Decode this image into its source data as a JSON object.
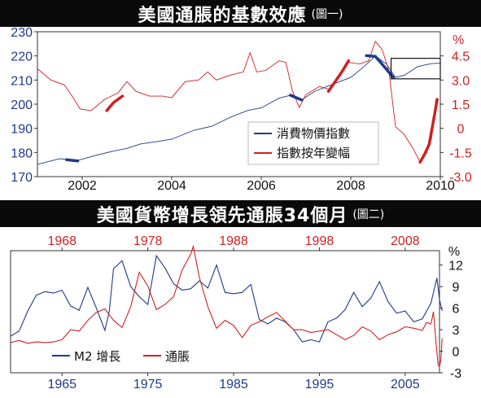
{
  "chart1_title": "美國通脹的基數效應",
  "chart1_subtitle": "(圖一)",
  "chart2_title": "美國貨幣增長領先通脹34個月",
  "chart2_subtitle": "(圖二)",
  "chart_data": [
    {
      "type": "line",
      "title": "美國通脹的基數效應",
      "x_ticks": [
        "2002",
        "2004",
        "2006",
        "2008",
        "2010"
      ],
      "left_ticks": [
        "230",
        "220",
        "210",
        "200",
        "190",
        "180",
        "170"
      ],
      "right_ticks": [
        "%",
        "4.5",
        "3.0",
        "1.5",
        "0",
        "-1.5",
        "-3.0"
      ],
      "left_range": [
        170,
        230
      ],
      "right_range": [
        -3.0,
        6.0
      ],
      "x_range": [
        2001,
        2010
      ],
      "legend": [
        "消費物價指數",
        "指數按年變幅"
      ],
      "series": [
        {
          "name": "消費物價指數",
          "axis": "left",
          "color": "#1f3a8a",
          "points": [
            [
              2001.0,
              175.1
            ],
            [
              2001.5,
              177.4
            ],
            [
              2001.9,
              176.7
            ],
            [
              2002.3,
              178.8
            ],
            [
              2002.7,
              180.6
            ],
            [
              2003.0,
              181.7
            ],
            [
              2003.3,
              183.5
            ],
            [
              2003.7,
              184.6
            ],
            [
              2004.0,
              185.5
            ],
            [
              2004.5,
              189.2
            ],
            [
              2004.9,
              190.9
            ],
            [
              2005.3,
              194.5
            ],
            [
              2005.7,
              197.4
            ],
            [
              2006.0,
              198.5
            ],
            [
              2006.4,
              202.5
            ],
            [
              2006.7,
              203.9
            ],
            [
              2006.9,
              201.8
            ],
            [
              2007.2,
              205.4
            ],
            [
              2007.6,
              208.3
            ],
            [
              2008.0,
              211.1
            ],
            [
              2008.3,
              215.6
            ],
            [
              2008.55,
              220.0
            ],
            [
              2008.8,
              216.6
            ],
            [
              2009.0,
              211.1
            ],
            [
              2009.2,
              212.0
            ],
            [
              2009.5,
              215.6
            ],
            [
              2009.8,
              216.8
            ],
            [
              2010.0,
              217.0
            ]
          ]
        },
        {
          "name": "指數按年變幅",
          "axis": "right",
          "color": "#d21f1f",
          "points": [
            [
              2001.0,
              3.7
            ],
            [
              2001.3,
              3.0
            ],
            [
              2001.6,
              2.7
            ],
            [
              2001.8,
              1.9
            ],
            [
              2001.95,
              1.2
            ],
            [
              2002.2,
              1.1
            ],
            [
              2002.5,
              1.8
            ],
            [
              2002.8,
              2.2
            ],
            [
              2003.0,
              2.9
            ],
            [
              2003.2,
              2.3
            ],
            [
              2003.5,
              2.0
            ],
            [
              2003.8,
              2.0
            ],
            [
              2004.0,
              1.9
            ],
            [
              2004.3,
              2.9
            ],
            [
              2004.6,
              3.0
            ],
            [
              2004.8,
              3.5
            ],
            [
              2005.0,
              3.0
            ],
            [
              2005.3,
              3.3
            ],
            [
              2005.6,
              3.5
            ],
            [
              2005.75,
              4.7
            ],
            [
              2005.9,
              3.5
            ],
            [
              2006.1,
              3.6
            ],
            [
              2006.4,
              4.2
            ],
            [
              2006.55,
              4.1
            ],
            [
              2006.7,
              2.3
            ],
            [
              2006.85,
              1.3
            ],
            [
              2007.0,
              2.1
            ],
            [
              2007.3,
              2.6
            ],
            [
              2007.55,
              2.4
            ],
            [
              2007.8,
              3.5
            ],
            [
              2007.95,
              4.1
            ],
            [
              2008.2,
              4.0
            ],
            [
              2008.4,
              4.2
            ],
            [
              2008.55,
              5.4
            ],
            [
              2008.7,
              4.9
            ],
            [
              2008.85,
              3.6
            ],
            [
              2009.0,
              0.1
            ],
            [
              2009.2,
              -0.4
            ],
            [
              2009.4,
              -1.3
            ],
            [
              2009.55,
              -2.1
            ],
            [
              2009.7,
              -1.5
            ],
            [
              2009.8,
              -0.7
            ],
            [
              2009.9,
              1.8
            ]
          ]
        }
      ],
      "highlights_blue": [
        [
          [
            2001.65,
            177.0
          ],
          [
            2001.9,
            176.5
          ]
        ],
        [
          [
            2006.65,
            203.7
          ],
          [
            2006.9,
            201.8
          ]
        ],
        [
          [
            2008.35,
            220.1
          ],
          [
            2008.55,
            219.8
          ],
          [
            2008.7,
            216.6
          ],
          [
            2008.95,
            211.1
          ]
        ]
      ],
      "highlights_red": [
        [
          [
            2002.55,
            1.1
          ],
          [
            2002.7,
            1.6
          ],
          [
            2002.9,
            2.0
          ]
        ],
        [
          [
            2007.5,
            2.3
          ],
          [
            2007.7,
            3.1
          ],
          [
            2007.8,
            3.5
          ],
          [
            2007.95,
            4.2
          ]
        ],
        [
          [
            2009.55,
            -2.1
          ],
          [
            2009.65,
            -1.6
          ],
          [
            2009.75,
            -1.0
          ],
          [
            2009.85,
            0.5
          ],
          [
            2009.93,
            1.8
          ]
        ]
      ],
      "highlight_box": {
        "x0": 2008.9,
        "x1": 2010.0,
        "y0": 210.5,
        "y1": 219.0
      }
    },
    {
      "type": "line",
      "title": "美國貨幣增長領先通脹34個月",
      "x_ticks_bottom": [
        "1965",
        "1975",
        "1985",
        "1995",
        "2005"
      ],
      "x_ticks_top": [
        "1968",
        "1978",
        "1988",
        "1998",
        "2008"
      ],
      "right_ticks": [
        "%",
        "12",
        "9",
        "6",
        "3",
        "0",
        "-3"
      ],
      "y_range": [
        -3,
        14
      ],
      "x_range_bottom": [
        1959,
        2009
      ],
      "legend": [
        "M2 增長",
        "通脹"
      ],
      "series": [
        {
          "name": "M2 增長",
          "color": "#1f3a8a",
          "points": [
            [
              1959.0,
              2.1
            ],
            [
              1960.0,
              2.8
            ],
            [
              1961.0,
              5.6
            ],
            [
              1962.0,
              7.8
            ],
            [
              1963.0,
              8.3
            ],
            [
              1964.0,
              8.1
            ],
            [
              1965.0,
              8.5
            ],
            [
              1966.0,
              6.3
            ],
            [
              1967.0,
              5.7
            ],
            [
              1968.0,
              8.9
            ],
            [
              1969.0,
              6.0
            ],
            [
              1970.0,
              2.9
            ],
            [
              1970.5,
              5.5
            ],
            [
              1971.0,
              11.5
            ],
            [
              1972.0,
              12.6
            ],
            [
              1973.0,
              9.0
            ],
            [
              1974.0,
              7.6
            ],
            [
              1975.0,
              6.5
            ],
            [
              1976.0,
              13.3
            ],
            [
              1977.0,
              11.6
            ],
            [
              1978.0,
              9.4
            ],
            [
              1979.0,
              8.5
            ],
            [
              1980.0,
              8.7
            ],
            [
              1981.0,
              9.8
            ],
            [
              1982.0,
              8.8
            ],
            [
              1983.0,
              12.0
            ],
            [
              1984.0,
              8.2
            ],
            [
              1985.0,
              8.0
            ],
            [
              1986.0,
              8.2
            ],
            [
              1987.0,
              9.3
            ],
            [
              1988.0,
              4.4
            ],
            [
              1989.0,
              3.8
            ],
            [
              1990.0,
              4.6
            ],
            [
              1991.0,
              4.1
            ],
            [
              1992.0,
              3.0
            ],
            [
              1993.0,
              1.3
            ],
            [
              1994.0,
              1.6
            ],
            [
              1995.0,
              1.3
            ],
            [
              1996.0,
              4.1
            ],
            [
              1997.0,
              4.6
            ],
            [
              1998.0,
              5.8
            ],
            [
              1999.0,
              8.2
            ],
            [
              2000.0,
              6.2
            ],
            [
              2001.0,
              7.4
            ],
            [
              2002.0,
              9.7
            ],
            [
              2003.0,
              6.9
            ],
            [
              2004.0,
              5.3
            ],
            [
              2005.0,
              5.6
            ],
            [
              2006.0,
              4.1
            ],
            [
              2007.0,
              4.5
            ],
            [
              2008.0,
              6.7
            ],
            [
              2008.7,
              10.2
            ],
            [
              2009.0,
              7.2
            ],
            [
              2009.3,
              5.6
            ]
          ]
        },
        {
          "name": "通脹",
          "color": "#d21f1f",
          "points": [
            [
              1959.0,
              1.2
            ],
            [
              1960.0,
              1.5
            ],
            [
              1961.0,
              1.1
            ],
            [
              1962.0,
              1.3
            ],
            [
              1963.0,
              1.2
            ],
            [
              1964.0,
              1.3
            ],
            [
              1965.0,
              1.6
            ],
            [
              1966.0,
              3.0
            ],
            [
              1967.0,
              2.8
            ],
            [
              1968.0,
              4.3
            ],
            [
              1969.0,
              5.4
            ],
            [
              1970.0,
              5.9
            ],
            [
              1971.0,
              4.3
            ],
            [
              1972.0,
              3.3
            ],
            [
              1973.0,
              6.2
            ],
            [
              1974.0,
              11.0
            ],
            [
              1975.0,
              9.1
            ],
            [
              1976.0,
              5.8
            ],
            [
              1977.0,
              6.5
            ],
            [
              1978.0,
              7.6
            ],
            [
              1979.0,
              11.3
            ],
            [
              1980.0,
              13.5
            ],
            [
              1980.3,
              14.6
            ],
            [
              1981.0,
              10.3
            ],
            [
              1982.0,
              6.2
            ],
            [
              1983.0,
              3.2
            ],
            [
              1984.0,
              4.3
            ],
            [
              1985.0,
              3.6
            ],
            [
              1986.0,
              1.9
            ],
            [
              1987.0,
              3.6
            ],
            [
              1988.0,
              4.1
            ],
            [
              1989.0,
              4.8
            ],
            [
              1990.0,
              5.4
            ],
            [
              1991.0,
              4.2
            ],
            [
              1992.0,
              3.0
            ],
            [
              1993.0,
              3.0
            ],
            [
              1994.0,
              2.6
            ],
            [
              1995.0,
              2.8
            ],
            [
              1996.0,
              3.0
            ],
            [
              1997.0,
              2.3
            ],
            [
              1998.0,
              1.6
            ],
            [
              1999.0,
              2.2
            ],
            [
              2000.0,
              3.4
            ],
            [
              2001.0,
              2.8
            ],
            [
              2002.0,
              1.6
            ],
            [
              2003.0,
              2.3
            ],
            [
              2004.0,
              2.7
            ],
            [
              2005.0,
              3.4
            ],
            [
              2006.0,
              3.2
            ],
            [
              2007.0,
              2.9
            ],
            [
              2007.5,
              4.0
            ],
            [
              2008.0,
              3.8
            ],
            [
              2008.3,
              5.5
            ],
            [
              2008.6,
              1.1
            ],
            [
              2008.85,
              -2.0
            ],
            [
              2009.0,
              -2.1
            ],
            [
              2009.15,
              -1.3
            ],
            [
              2009.3,
              1.8
            ]
          ]
        }
      ]
    }
  ]
}
